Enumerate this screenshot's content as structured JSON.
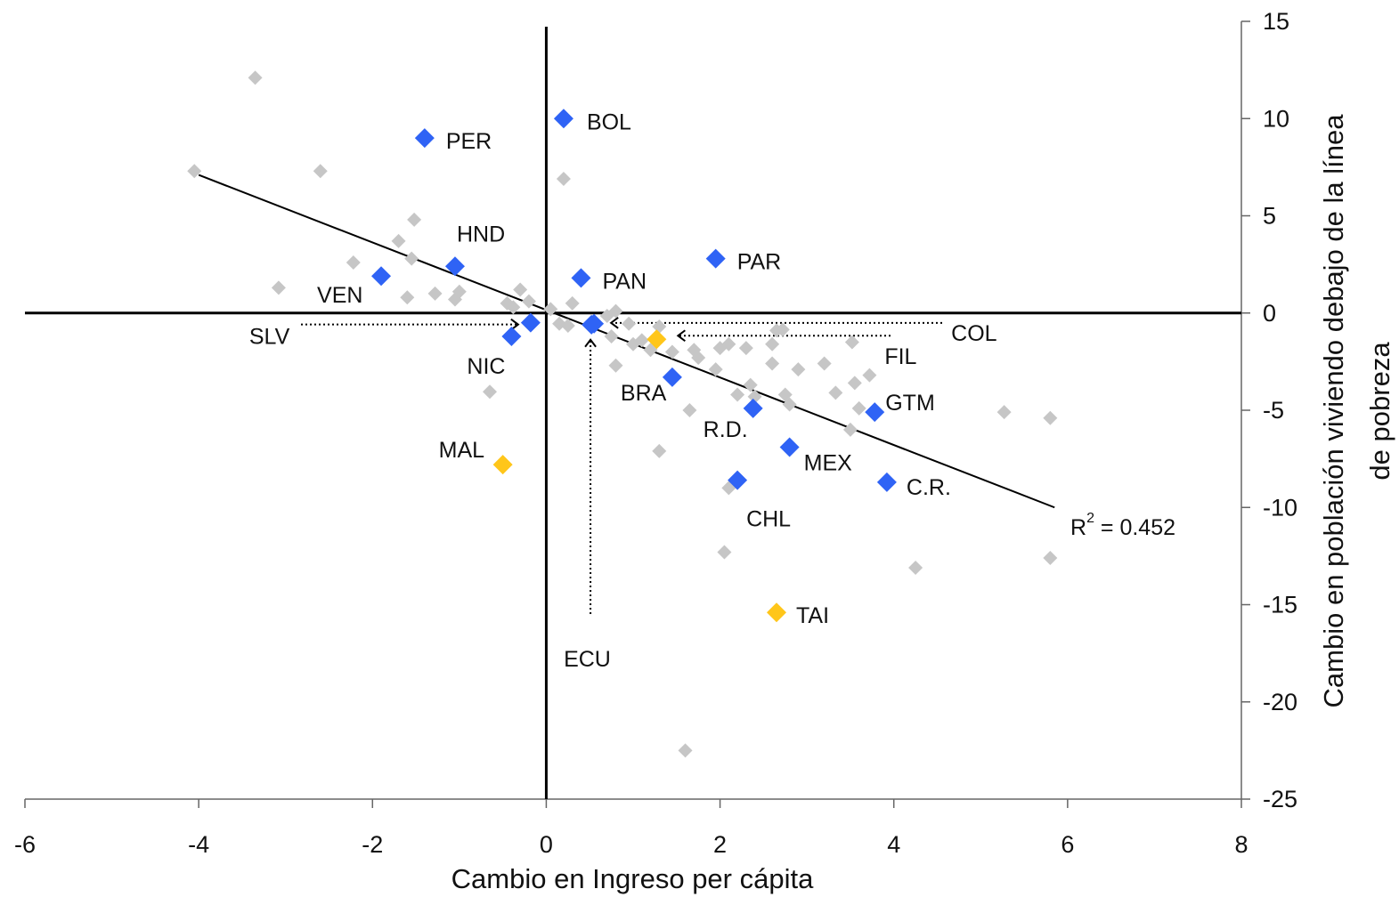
{
  "chart_data": {
    "type": "scatter",
    "title": "",
    "xlabel": "Cambio en Ingreso per cápita",
    "ylabel_lines": [
      "Cambio en población viviendo debajo de la línea",
      "de pobreza"
    ],
    "xlim": [
      -6,
      8
    ],
    "ylim": [
      -25,
      15
    ],
    "xticks": [
      -6,
      -4,
      -2,
      0,
      2,
      4,
      6,
      8
    ],
    "yticks": [
      15,
      10,
      5,
      0,
      -5,
      -10,
      -15,
      -20,
      -25
    ],
    "grid": false,
    "legend": "none",
    "colors": {
      "background": "#c6c6c6",
      "highlight": "#2f63f5",
      "accent": "#ffc61a",
      "trend": "#000000"
    },
    "trendline": {
      "x": [
        -4.0,
        5.85
      ],
      "y": [
        7.1,
        -10.0
      ]
    },
    "r2": {
      "prefix": "R",
      "sup": "2",
      "text": " = 0.452"
    },
    "background_points": [
      [
        -3.35,
        12.1
      ],
      [
        -4.05,
        7.3
      ],
      [
        -2.6,
        7.3
      ],
      [
        -1.52,
        4.8
      ],
      [
        -1.7,
        3.7
      ],
      [
        -1.55,
        2.8
      ],
      [
        -2.22,
        2.6
      ],
      [
        -3.08,
        1.3
      ],
      [
        -1.28,
        1.0
      ],
      [
        -1.6,
        0.8
      ],
      [
        -1.0,
        1.1
      ],
      [
        -1.05,
        0.7
      ],
      [
        -0.3,
        1.2
      ],
      [
        -0.2,
        0.6
      ],
      [
        0.05,
        0.2
      ],
      [
        0.3,
        0.5
      ],
      [
        -0.38,
        0.3
      ],
      [
        -0.45,
        0.5
      ],
      [
        0.25,
        -0.65
      ],
      [
        0.15,
        -0.55
      ],
      [
        0.7,
        -0.15
      ],
      [
        0.8,
        0.1
      ],
      [
        0.95,
        -0.55
      ],
      [
        1.3,
        -0.7
      ],
      [
        0.75,
        -1.2
      ],
      [
        1.0,
        -1.6
      ],
      [
        1.1,
        -1.4
      ],
      [
        1.2,
        -1.9
      ],
      [
        1.45,
        -2.0
      ],
      [
        0.8,
        -2.7
      ],
      [
        1.7,
        -1.9
      ],
      [
        1.75,
        -2.3
      ],
      [
        2.0,
        -1.8
      ],
      [
        2.1,
        -1.6
      ],
      [
        2.3,
        -1.8
      ],
      [
        2.6,
        -1.6
      ],
      [
        2.65,
        -0.9
      ],
      [
        2.72,
        -0.85
      ],
      [
        1.95,
        -2.9
      ],
      [
        2.35,
        -3.7
      ],
      [
        2.4,
        -4.3
      ],
      [
        2.6,
        -2.6
      ],
      [
        2.9,
        -2.9
      ],
      [
        3.2,
        -2.6
      ],
      [
        3.33,
        -4.1
      ],
      [
        3.55,
        -3.6
      ],
      [
        3.72,
        -3.2
      ],
      [
        3.52,
        -1.5
      ],
      [
        2.2,
        -4.2
      ],
      [
        2.75,
        -4.2
      ],
      [
        2.8,
        -4.7
      ],
      [
        1.65,
        -5.0
      ],
      [
        3.6,
        -4.9
      ],
      [
        3.5,
        -6.0
      ],
      [
        1.3,
        -7.1
      ],
      [
        2.1,
        -9.0
      ],
      [
        2.05,
        -12.3
      ],
      [
        4.25,
        -13.1
      ],
      [
        5.27,
        -5.1
      ],
      [
        5.8,
        -5.4
      ],
      [
        5.8,
        -12.6
      ],
      [
        1.6,
        -22.5
      ],
      [
        -0.65,
        -4.05
      ],
      [
        0.2,
        6.9
      ]
    ],
    "highlighted_points": [
      {
        "label": "BOL",
        "x": 0.2,
        "y": 10.0
      },
      {
        "label": "PER",
        "x": -1.4,
        "y": 9.0
      },
      {
        "label": "HND",
        "x": -1.05,
        "y": 2.4
      },
      {
        "label": "VEN",
        "x": -1.9,
        "y": 1.9
      },
      {
        "label": "PAN",
        "x": 0.4,
        "y": 1.8
      },
      {
        "label": "PAR",
        "x": 1.95,
        "y": 2.8
      },
      {
        "label": "SLV",
        "x": -0.18,
        "y": -0.5
      },
      {
        "label": "NIC",
        "x": -0.4,
        "y": -1.2
      },
      {
        "label": "ECU",
        "x": 0.55,
        "y": -0.55
      },
      {
        "label": "COL",
        "x": 0.52,
        "y": -0.6
      },
      {
        "label": "BRA",
        "x": 1.45,
        "y": -3.3
      },
      {
        "label": "R.D.",
        "x": 2.38,
        "y": -4.9
      },
      {
        "label": "GTM",
        "x": 3.78,
        "y": -5.1
      },
      {
        "label": "MEX",
        "x": 2.8,
        "y": -6.9
      },
      {
        "label": "CHL",
        "x": 2.2,
        "y": -8.6
      },
      {
        "label": "C.R.",
        "x": 3.92,
        "y": -8.7
      }
    ],
    "accent_points": [
      {
        "label": "FIL",
        "x": 1.27,
        "y": -1.35
      },
      {
        "label": "MAL",
        "x": -0.5,
        "y": -7.8
      },
      {
        "label": "TAI",
        "x": 2.65,
        "y": -15.4
      }
    ]
  }
}
